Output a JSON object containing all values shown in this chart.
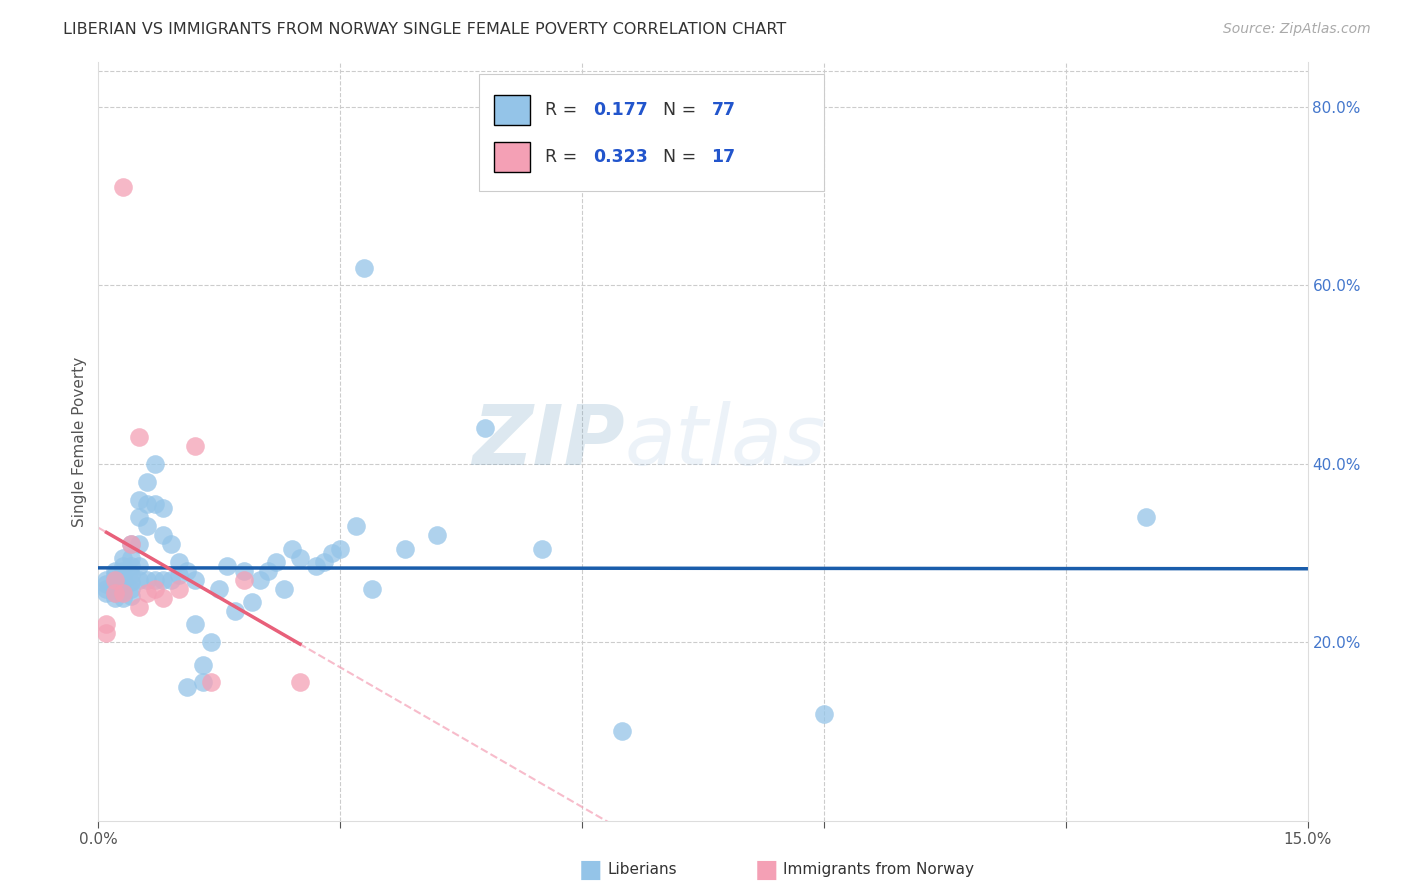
{
  "title": "LIBERIAN VS IMMIGRANTS FROM NORWAY SINGLE FEMALE POVERTY CORRELATION CHART",
  "source": "Source: ZipAtlas.com",
  "ylabel": "Single Female Poverty",
  "xlim": [
    0.0,
    0.15
  ],
  "ylim": [
    0.0,
    0.85
  ],
  "color_blue": "#94C4E8",
  "color_pink": "#F4A0B5",
  "line_blue": "#1A5DAB",
  "line_pink": "#E8607A",
  "watermark_zip": "ZIP",
  "watermark_atlas": "atlas",
  "liberian_x": [
    0.001,
    0.001,
    0.001,
    0.001,
    0.002,
    0.002,
    0.002,
    0.002,
    0.002,
    0.002,
    0.002,
    0.003,
    0.003,
    0.003,
    0.003,
    0.003,
    0.003,
    0.003,
    0.003,
    0.004,
    0.004,
    0.004,
    0.004,
    0.004,
    0.004,
    0.004,
    0.005,
    0.005,
    0.005,
    0.005,
    0.005,
    0.006,
    0.006,
    0.006,
    0.006,
    0.007,
    0.007,
    0.007,
    0.008,
    0.008,
    0.008,
    0.009,
    0.009,
    0.01,
    0.01,
    0.011,
    0.011,
    0.012,
    0.012,
    0.013,
    0.013,
    0.014,
    0.015,
    0.016,
    0.017,
    0.018,
    0.019,
    0.02,
    0.021,
    0.022,
    0.023,
    0.024,
    0.025,
    0.027,
    0.028,
    0.029,
    0.03,
    0.032,
    0.033,
    0.034,
    0.038,
    0.042,
    0.048,
    0.055,
    0.065,
    0.09,
    0.13
  ],
  "liberian_y": [
    0.27,
    0.265,
    0.26,
    0.255,
    0.28,
    0.275,
    0.27,
    0.265,
    0.26,
    0.255,
    0.25,
    0.295,
    0.285,
    0.28,
    0.275,
    0.27,
    0.265,
    0.258,
    0.25,
    0.31,
    0.295,
    0.285,
    0.275,
    0.268,
    0.26,
    0.252,
    0.36,
    0.34,
    0.31,
    0.285,
    0.27,
    0.38,
    0.355,
    0.33,
    0.27,
    0.4,
    0.355,
    0.27,
    0.35,
    0.32,
    0.27,
    0.31,
    0.27,
    0.29,
    0.275,
    0.28,
    0.15,
    0.27,
    0.22,
    0.175,
    0.155,
    0.2,
    0.26,
    0.285,
    0.235,
    0.28,
    0.245,
    0.27,
    0.28,
    0.29,
    0.26,
    0.305,
    0.295,
    0.285,
    0.29,
    0.3,
    0.305,
    0.33,
    0.62,
    0.26,
    0.305,
    0.32,
    0.44,
    0.305,
    0.1,
    0.12,
    0.34
  ],
  "norway_x": [
    0.001,
    0.001,
    0.002,
    0.002,
    0.003,
    0.003,
    0.004,
    0.005,
    0.005,
    0.006,
    0.007,
    0.008,
    0.01,
    0.012,
    0.014,
    0.018,
    0.025
  ],
  "norway_y": [
    0.22,
    0.21,
    0.27,
    0.255,
    0.71,
    0.255,
    0.31,
    0.43,
    0.24,
    0.255,
    0.26,
    0.25,
    0.26,
    0.42,
    0.155,
    0.27,
    0.155
  ]
}
